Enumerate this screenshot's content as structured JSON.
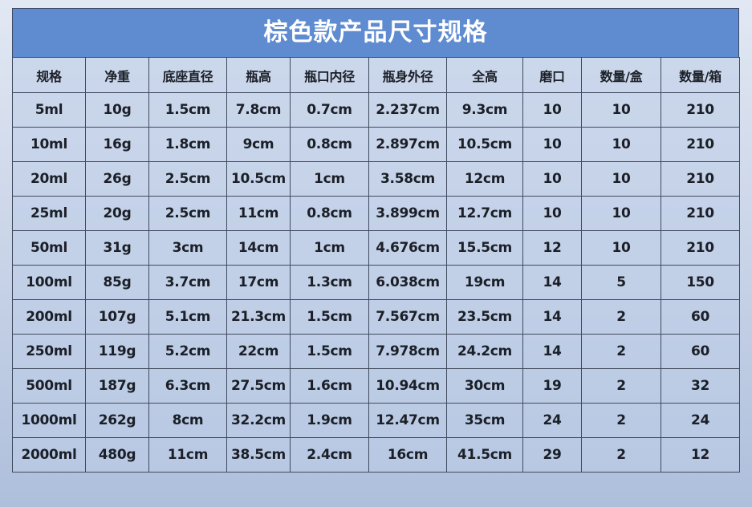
{
  "title": "棕色款产品尺寸规格",
  "headers": [
    "规格",
    "净重",
    "底座直径",
    "瓶高",
    "瓶口内径",
    "瓶身外径",
    "全高",
    "磨口",
    "数量/盒",
    "数量/箱"
  ],
  "rows": [
    [
      "5ml",
      "10g",
      "1.5cm",
      "7.8cm",
      "0.7cm",
      "2.237cm",
      "9.3cm",
      "10",
      "10",
      "210"
    ],
    [
      "10ml",
      "16g",
      "1.8cm",
      "9cm",
      "0.8cm",
      "2.897cm",
      "10.5cm",
      "10",
      "10",
      "210"
    ],
    [
      "20ml",
      "26g",
      "2.5cm",
      "10.5cm",
      "1cm",
      "3.58cm",
      "12cm",
      "10",
      "10",
      "210"
    ],
    [
      "25ml",
      "20g",
      "2.5cm",
      "11cm",
      "0.8cm",
      "3.899cm",
      "12.7cm",
      "10",
      "10",
      "210"
    ],
    [
      "50ml",
      "31g",
      "3cm",
      "14cm",
      "1cm",
      "4.676cm",
      "15.5cm",
      "12",
      "10",
      "210"
    ],
    [
      "100ml",
      "85g",
      "3.7cm",
      "17cm",
      "1.3cm",
      "6.038cm",
      "19cm",
      "14",
      "5",
      "150"
    ],
    [
      "200ml",
      "107g",
      "5.1cm",
      "21.3cm",
      "1.5cm",
      "7.567cm",
      "23.5cm",
      "14",
      "2",
      "60"
    ],
    [
      "250ml",
      "119g",
      "5.2cm",
      "22cm",
      "1.5cm",
      "7.978cm",
      "24.2cm",
      "14",
      "2",
      "60"
    ],
    [
      "500ml",
      "187g",
      "6.3cm",
      "27.5cm",
      "1.6cm",
      "10.94cm",
      "30cm",
      "19",
      "2",
      "32"
    ],
    [
      "1000ml",
      "262g",
      "8cm",
      "32.2cm",
      "1.9cm",
      "12.47cm",
      "35cm",
      "24",
      "2",
      "24"
    ],
    [
      "2000ml",
      "480g",
      "11cm",
      "38.5cm",
      "2.4cm",
      "16cm",
      "41.5cm",
      "29",
      "2",
      "12"
    ]
  ]
}
